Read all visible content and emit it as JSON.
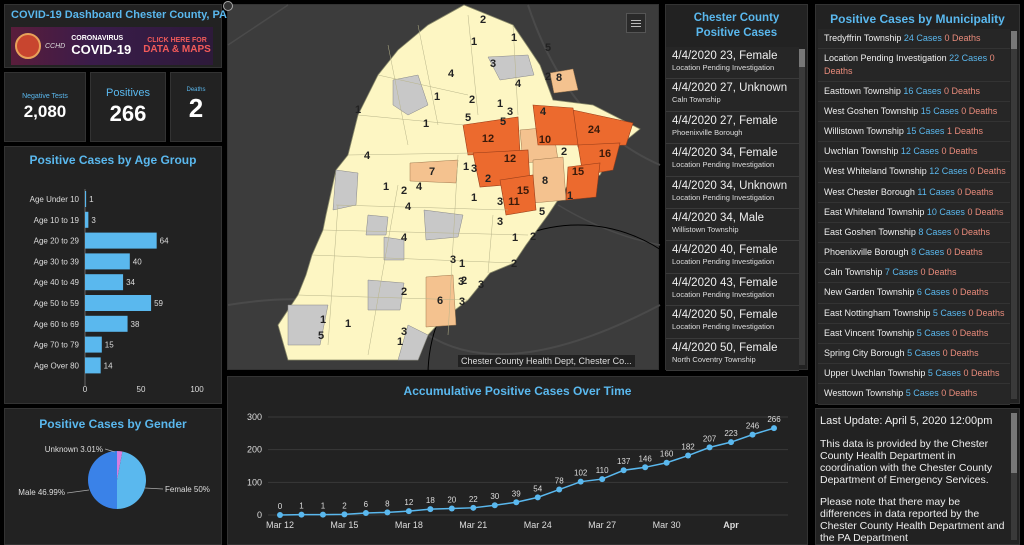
{
  "header": {
    "title": "COVID-19 Dashboard Chester County, PA",
    "banner": {
      "seal_text": "CCHD",
      "line1": "CORONAVIRUS",
      "line2": "COVID-19",
      "cta1": "CLICK HERE FOR",
      "cta2": "DATA & MAPS"
    }
  },
  "kpis": {
    "negative": {
      "label": "Negative Tests",
      "value": "2,080"
    },
    "positives": {
      "label": "Positives",
      "value": "266"
    },
    "deaths": {
      "label": "Deaths",
      "value": "2"
    }
  },
  "map": {
    "attribution": "Chester County Health Dept, Chester Co...",
    "list_icon": "list-icon",
    "numbers": [
      "2",
      "1",
      "1",
      "5",
      "3",
      "4",
      "1",
      "2",
      "8",
      "4",
      "4",
      "2",
      "1",
      "5",
      "3",
      "4",
      "1",
      "5",
      "12",
      "10",
      "24",
      "12",
      "2",
      "16",
      "4",
      "1",
      "7",
      "3",
      "1",
      "1",
      "15",
      "8",
      "15",
      "2",
      "11",
      "5",
      "2",
      "3",
      "4",
      "1",
      "2",
      "3",
      "3",
      "3",
      "3",
      "2",
      "2",
      "2",
      "4",
      "1",
      "1",
      "1",
      "3",
      "6",
      "3",
      "1",
      "5",
      "1",
      "1"
    ],
    "colors": {
      "background": "#3a3a3a",
      "low": "#fdf6c3",
      "mid": "#f4c28f",
      "high": "#ec6a2e",
      "none": "#c8c8c8"
    }
  },
  "age_chart": {
    "title": "Positive Cases by Age Group",
    "chart_data": {
      "type": "bar",
      "orientation": "horizontal",
      "categories": [
        "Age Under 10",
        "Age 10 to 19",
        "Age 20 to 29",
        "Age 30 to 39",
        "Age 40 to 49",
        "Age 50 to 59",
        "Age 60 to 69",
        "Age 70 to 79",
        "Age Over 80"
      ],
      "values": [
        1,
        3,
        64,
        40,
        34,
        59,
        38,
        15,
        14
      ],
      "xticks": [
        "0",
        "50",
        "100"
      ],
      "xlim": [
        0,
        100
      ],
      "color": "#5ab8ee"
    }
  },
  "gender_chart": {
    "title": "Positive Cases by Gender",
    "chart_data": {
      "type": "pie",
      "labels": [
        "Unknown 3.01%",
        "Male 46.99%",
        "Female 50%"
      ],
      "values": [
        3.01,
        46.99,
        50
      ],
      "colors": [
        "#d67ee0",
        "#5ab8ee",
        "#3a82e8"
      ]
    }
  },
  "feed": {
    "title": "Chester County Positive Cases",
    "items": [
      {
        "main": "4/4/2020  23, Female",
        "sub": "Location Pending Investigation"
      },
      {
        "main": "4/4/2020  27, Unknown",
        "sub": "Caln Township"
      },
      {
        "main": "4/4/2020  27, Female",
        "sub": "Phoenixville Borough"
      },
      {
        "main": "4/4/2020  34, Female",
        "sub": "Location Pending Investigation"
      },
      {
        "main": "4/4/2020  34, Unknown",
        "sub": "Location Pending Investigation"
      },
      {
        "main": "4/4/2020  34, Male",
        "sub": "Willistown Township"
      },
      {
        "main": "4/4/2020  40, Female",
        "sub": "Location Pending Investigation"
      },
      {
        "main": "4/4/2020  43, Female",
        "sub": "Location Pending Investigation"
      },
      {
        "main": "4/4/2020  50, Female",
        "sub": "Location Pending Investigation"
      },
      {
        "main": "4/4/2020  50, Female",
        "sub": "North Coventry Township"
      }
    ]
  },
  "time_chart": {
    "title": "Accumulative Positive Cases Over Time",
    "chart_data": {
      "type": "line",
      "x_tick_labels": [
        "Mar 12",
        "Mar 15",
        "Mar 18",
        "Mar 21",
        "Mar 24",
        "Mar 27",
        "Mar 30",
        "Apr"
      ],
      "y": [
        0,
        1,
        1,
        2,
        6,
        8,
        12,
        18,
        20,
        22,
        30,
        39,
        54,
        78,
        102,
        110,
        137,
        146,
        160,
        182,
        207,
        223,
        246,
        266
      ],
      "yticks": [
        "0",
        "100",
        "200",
        "300"
      ],
      "ylim": [
        0,
        300
      ],
      "color": "#5ab8ee"
    }
  },
  "municipalities": {
    "title": "Positive Cases by Municipality",
    "items": [
      {
        "name": "Tredyffrin Township",
        "cases": "24 Cases",
        "deaths": "0 Deaths"
      },
      {
        "name": "Location Pending Investigation",
        "cases": "22 Cases",
        "deaths": "0 Deaths"
      },
      {
        "name": "Easttown Township",
        "cases": "16 Cases",
        "deaths": "0 Deaths"
      },
      {
        "name": "West Goshen Township",
        "cases": "15 Cases",
        "deaths": "0 Deaths"
      },
      {
        "name": "Willistown Township",
        "cases": "15 Cases",
        "deaths": "1 Deaths"
      },
      {
        "name": "Uwchlan Township",
        "cases": "12 Cases",
        "deaths": "0 Deaths"
      },
      {
        "name": "West Whiteland Township",
        "cases": "12 Cases",
        "deaths": "0 Deaths"
      },
      {
        "name": "West Chester Borough",
        "cases": "11 Cases",
        "deaths": "0 Deaths"
      },
      {
        "name": "East Whiteland Township",
        "cases": "10 Cases",
        "deaths": "0 Deaths"
      },
      {
        "name": "East Goshen Township",
        "cases": "8 Cases",
        "deaths": "0 Deaths"
      },
      {
        "name": "Phoenixville Borough",
        "cases": "8 Cases",
        "deaths": "0 Deaths"
      },
      {
        "name": "Caln Township",
        "cases": "7 Cases",
        "deaths": "0 Deaths"
      },
      {
        "name": "New Garden Township",
        "cases": "6 Cases",
        "deaths": "0 Deaths"
      },
      {
        "name": "East Nottingham Township",
        "cases": "5 Cases",
        "deaths": "0 Deaths"
      },
      {
        "name": "East Vincent Township",
        "cases": "5 Cases",
        "deaths": "0 Deaths"
      },
      {
        "name": "Spring City Borough",
        "cases": "5 Cases",
        "deaths": "0 Deaths"
      },
      {
        "name": "Upper Uwchlan Township",
        "cases": "5 Cases",
        "deaths": "0 Deaths"
      },
      {
        "name": "Westtown Township",
        "cases": "5 Cases",
        "deaths": "0 Deaths"
      }
    ]
  },
  "info": {
    "last_update": "Last Update: April 5, 2020 12:00pm",
    "para1": "This data is provided by the Chester County Health Department in coordination with the Chester County Department of Emergency Services.",
    "para2": "Please note that there may be differences in data reported by the Chester County Health Department and the PA Department"
  }
}
